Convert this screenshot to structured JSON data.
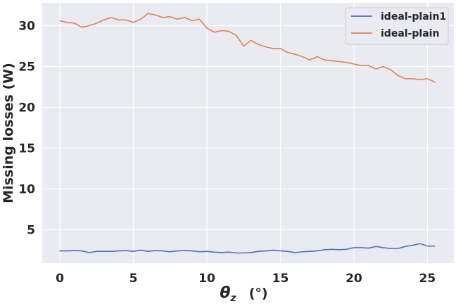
{
  "chart_data": {
    "type": "line",
    "xlabel": "θz (°)",
    "xlabel_main": "θ",
    "xlabel_sub": "z",
    "xlabel_unit": "(°)",
    "ylabel": "Missing losses (W)",
    "xlim": [
      -1.2,
      26.8
    ],
    "ylim": [
      0.9,
      32.8
    ],
    "xticks": [
      0,
      5,
      10,
      15,
      20,
      25
    ],
    "yticks": [
      5,
      10,
      15,
      20,
      25,
      30
    ],
    "grid": true,
    "background": "#eaeaf2",
    "legend_position": "top-right",
    "x": [
      0,
      0.5,
      1,
      1.5,
      2,
      2.5,
      3,
      3.5,
      4,
      4.5,
      5,
      5.5,
      6,
      6.5,
      7,
      7.5,
      8,
      8.5,
      9,
      9.5,
      10,
      10.5,
      11,
      11.5,
      12,
      12.5,
      13,
      13.5,
      14,
      14.5,
      15,
      15.5,
      16,
      16.5,
      17,
      17.5,
      18,
      18.5,
      19,
      19.5,
      20,
      20.5,
      21,
      21.5,
      22,
      22.5,
      23,
      23.5,
      24,
      24.5,
      25,
      25.5
    ],
    "series": [
      {
        "name": "ideal-plain1",
        "color": "#4c72b0",
        "values": [
          2.4,
          2.4,
          2.45,
          2.4,
          2.2,
          2.35,
          2.35,
          2.35,
          2.4,
          2.45,
          2.35,
          2.5,
          2.35,
          2.45,
          2.4,
          2.3,
          2.4,
          2.45,
          2.4,
          2.3,
          2.35,
          2.25,
          2.2,
          2.25,
          2.15,
          2.15,
          2.2,
          2.35,
          2.4,
          2.5,
          2.4,
          2.35,
          2.2,
          2.3,
          2.35,
          2.4,
          2.55,
          2.6,
          2.55,
          2.6,
          2.8,
          2.8,
          2.75,
          2.95,
          2.8,
          2.7,
          2.7,
          2.95,
          3.1,
          3.3,
          3.0,
          3.0
        ]
      },
      {
        "name": "ideal-plain",
        "color": "#dd8452",
        "values": [
          30.6,
          30.4,
          30.3,
          29.8,
          30.0,
          30.3,
          30.7,
          31.0,
          30.7,
          30.7,
          30.4,
          30.8,
          31.5,
          31.3,
          31.0,
          31.1,
          30.8,
          31.0,
          30.6,
          30.8,
          29.7,
          29.2,
          29.4,
          29.3,
          28.8,
          27.5,
          28.2,
          27.7,
          27.4,
          27.2,
          27.2,
          26.7,
          26.5,
          26.2,
          25.8,
          26.2,
          25.8,
          25.7,
          25.6,
          25.5,
          25.3,
          25.1,
          25.1,
          24.7,
          25.0,
          24.6,
          23.9,
          23.5,
          23.5,
          23.4,
          23.5,
          23.1
        ]
      }
    ]
  }
}
